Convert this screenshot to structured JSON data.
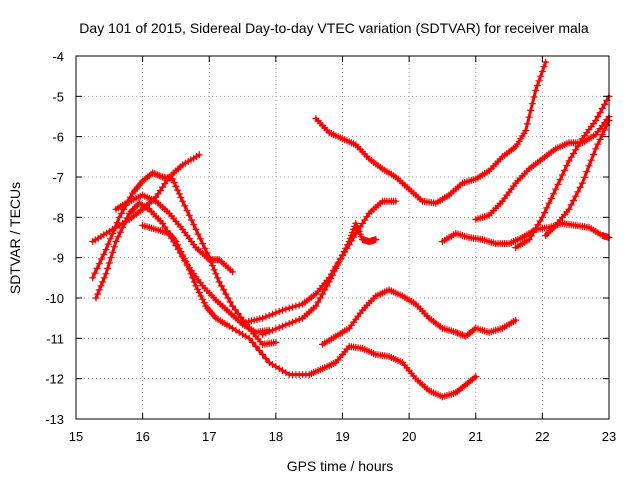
{
  "chart_data": {
    "type": "scatter",
    "title": "Day 101 of 2015, Sidereal Day-to-day VTEC variation (SDTVAR) for receiver mala",
    "xlabel": "GPS time / hours",
    "ylabel": "SDTVAR / TECUs",
    "xlim": [
      15,
      23
    ],
    "ylim": [
      -13,
      -4
    ],
    "xticks": [
      "15",
      "16",
      "17",
      "18",
      "19",
      "20",
      "21",
      "22",
      "23"
    ],
    "yticks": [
      "-4",
      "-5",
      "-6",
      "-7",
      "-8",
      "-9",
      "-10",
      "-11",
      "-12",
      "-13"
    ],
    "grid": true,
    "marker": "plus",
    "color": "#ff0000",
    "series": [
      {
        "name": "arc-1",
        "points": [
          [
            15.25,
            -8.6
          ],
          [
            15.5,
            -8.35
          ],
          [
            15.8,
            -8.05
          ],
          [
            16.0,
            -7.8
          ],
          [
            16.2,
            -7.5
          ],
          [
            16.4,
            -7.0
          ],
          [
            16.6,
            -6.7
          ],
          [
            16.85,
            -6.45
          ]
        ]
      },
      {
        "name": "arc-2",
        "points": [
          [
            15.25,
            -9.5
          ],
          [
            15.45,
            -8.8
          ],
          [
            15.65,
            -8.0
          ],
          [
            15.85,
            -7.4
          ],
          [
            16.0,
            -7.1
          ],
          [
            16.15,
            -6.9
          ],
          [
            16.3,
            -7.0
          ],
          [
            16.45,
            -7.05
          ],
          [
            16.6,
            -7.6
          ],
          [
            16.8,
            -8.3
          ],
          [
            17.0,
            -9.0
          ],
          [
            17.15,
            -9.6
          ],
          [
            17.35,
            -10.2
          ],
          [
            17.6,
            -10.75
          ],
          [
            17.8,
            -11.15
          ],
          [
            18.0,
            -11.1
          ]
        ]
      },
      {
        "name": "arc-3",
        "points": [
          [
            15.3,
            -10.0
          ],
          [
            15.45,
            -9.4
          ],
          [
            15.6,
            -8.6
          ],
          [
            15.8,
            -7.9
          ],
          [
            15.95,
            -7.65
          ],
          [
            16.1,
            -7.8
          ],
          [
            16.3,
            -8.15
          ],
          [
            16.5,
            -8.7
          ],
          [
            16.7,
            -9.25
          ],
          [
            16.9,
            -9.7
          ],
          [
            17.1,
            -10.05
          ],
          [
            17.3,
            -10.35
          ],
          [
            17.5,
            -10.65
          ],
          [
            17.7,
            -10.85
          ],
          [
            17.9,
            -10.8
          ]
        ]
      },
      {
        "name": "arc-4",
        "points": [
          [
            15.6,
            -7.8
          ],
          [
            15.8,
            -7.6
          ],
          [
            16.0,
            -7.45
          ],
          [
            16.2,
            -7.6
          ],
          [
            16.4,
            -7.9
          ],
          [
            16.6,
            -8.3
          ],
          [
            16.8,
            -8.75
          ],
          [
            17.0,
            -9.05
          ],
          [
            17.15,
            -9.05
          ],
          [
            17.35,
            -9.35
          ]
        ]
      },
      {
        "name": "arc-5",
        "points": [
          [
            16.0,
            -8.2
          ],
          [
            16.2,
            -8.3
          ],
          [
            16.4,
            -8.4
          ],
          [
            16.5,
            -8.6
          ],
          [
            16.65,
            -9.1
          ],
          [
            16.8,
            -9.7
          ],
          [
            16.95,
            -10.2
          ],
          [
            17.1,
            -10.5
          ],
          [
            17.3,
            -10.7
          ],
          [
            17.6,
            -11.0
          ],
          [
            17.9,
            -11.6
          ],
          [
            18.2,
            -11.9
          ],
          [
            18.5,
            -11.9
          ],
          [
            18.7,
            -11.75
          ],
          [
            18.9,
            -11.6
          ],
          [
            19.1,
            -11.2
          ],
          [
            19.3,
            -11.25
          ],
          [
            19.5,
            -11.4
          ],
          [
            19.7,
            -11.45
          ],
          [
            19.9,
            -11.6
          ],
          [
            20.1,
            -12.0
          ],
          [
            20.3,
            -12.3
          ],
          [
            20.5,
            -12.45
          ],
          [
            20.7,
            -12.35
          ],
          [
            20.85,
            -12.15
          ],
          [
            21.0,
            -11.95
          ]
        ]
      },
      {
        "name": "arc-6",
        "points": [
          [
            17.55,
            -10.6
          ],
          [
            17.8,
            -10.5
          ],
          [
            18.1,
            -10.3
          ],
          [
            18.4,
            -10.15
          ],
          [
            18.6,
            -9.9
          ],
          [
            18.8,
            -9.5
          ],
          [
            19.0,
            -8.95
          ],
          [
            19.2,
            -8.4
          ],
          [
            19.4,
            -7.9
          ],
          [
            19.6,
            -7.6
          ],
          [
            19.8,
            -7.6
          ]
        ]
      },
      {
        "name": "arc-7",
        "points": [
          [
            17.8,
            -10.9
          ],
          [
            18.1,
            -10.7
          ],
          [
            18.4,
            -10.5
          ],
          [
            18.6,
            -10.2
          ],
          [
            18.8,
            -9.6
          ],
          [
            18.95,
            -9.1
          ],
          [
            19.1,
            -8.6
          ],
          [
            19.2,
            -8.15
          ],
          [
            19.3,
            -8.55
          ],
          [
            19.4,
            -8.6
          ],
          [
            19.5,
            -8.55
          ]
        ]
      },
      {
        "name": "arc-8",
        "points": [
          [
            18.6,
            -5.55
          ],
          [
            18.8,
            -5.9
          ],
          [
            19.0,
            -6.05
          ],
          [
            19.2,
            -6.2
          ],
          [
            19.4,
            -6.55
          ],
          [
            19.6,
            -6.8
          ],
          [
            19.8,
            -7.0
          ],
          [
            20.0,
            -7.3
          ],
          [
            20.2,
            -7.6
          ],
          [
            20.4,
            -7.65
          ],
          [
            20.6,
            -7.45
          ],
          [
            20.8,
            -7.15
          ],
          [
            21.0,
            -7.05
          ],
          [
            21.2,
            -6.85
          ],
          [
            21.4,
            -6.5
          ],
          [
            21.6,
            -6.25
          ],
          [
            21.75,
            -5.85
          ],
          [
            21.9,
            -4.85
          ],
          [
            22.05,
            -4.15
          ]
        ]
      },
      {
        "name": "arc-9",
        "points": [
          [
            18.7,
            -11.15
          ],
          [
            18.9,
            -10.95
          ],
          [
            19.1,
            -10.75
          ],
          [
            19.3,
            -10.3
          ],
          [
            19.5,
            -9.95
          ],
          [
            19.7,
            -9.8
          ],
          [
            19.9,
            -9.95
          ],
          [
            20.1,
            -10.15
          ],
          [
            20.3,
            -10.5
          ],
          [
            20.5,
            -10.75
          ],
          [
            20.7,
            -10.85
          ],
          [
            20.85,
            -10.95
          ],
          [
            21.0,
            -10.75
          ],
          [
            21.2,
            -10.85
          ],
          [
            21.4,
            -10.75
          ],
          [
            21.6,
            -10.55
          ]
        ]
      },
      {
        "name": "arc-10",
        "points": [
          [
            20.5,
            -8.6
          ],
          [
            20.7,
            -8.4
          ],
          [
            20.9,
            -8.5
          ],
          [
            21.1,
            -8.55
          ],
          [
            21.3,
            -8.65
          ],
          [
            21.5,
            -8.65
          ],
          [
            21.7,
            -8.5
          ],
          [
            21.9,
            -8.3
          ],
          [
            22.1,
            -8.25
          ],
          [
            22.3,
            -8.15
          ],
          [
            22.5,
            -8.2
          ],
          [
            22.7,
            -8.25
          ],
          [
            22.9,
            -8.45
          ],
          [
            23.0,
            -8.5
          ]
        ]
      },
      {
        "name": "arc-11",
        "points": [
          [
            21.0,
            -8.05
          ],
          [
            21.2,
            -7.95
          ],
          [
            21.4,
            -7.6
          ],
          [
            21.6,
            -7.15
          ],
          [
            21.8,
            -6.8
          ],
          [
            22.0,
            -6.55
          ],
          [
            22.2,
            -6.3
          ],
          [
            22.4,
            -6.15
          ],
          [
            22.6,
            -6.15
          ],
          [
            22.8,
            -5.95
          ],
          [
            23.0,
            -5.5
          ]
        ]
      },
      {
        "name": "arc-12",
        "points": [
          [
            21.6,
            -8.75
          ],
          [
            21.8,
            -8.55
          ],
          [
            22.0,
            -8.0
          ],
          [
            22.2,
            -7.3
          ],
          [
            22.4,
            -6.6
          ],
          [
            22.6,
            -6.05
          ],
          [
            22.8,
            -5.6
          ],
          [
            23.0,
            -5.0
          ]
        ]
      },
      {
        "name": "arc-13",
        "points": [
          [
            22.05,
            -8.45
          ],
          [
            22.2,
            -8.2
          ],
          [
            22.4,
            -7.8
          ],
          [
            22.6,
            -7.15
          ],
          [
            22.8,
            -6.3
          ],
          [
            23.0,
            -5.6
          ]
        ]
      }
    ]
  }
}
